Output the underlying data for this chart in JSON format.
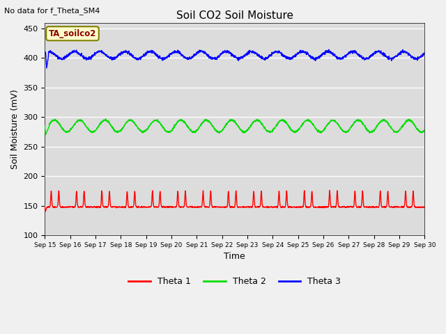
{
  "title": "Soil CO2 Soil Moisture",
  "xlabel": "Time",
  "ylabel": "Soil Moisture (mV)",
  "ylim": [
    100,
    460
  ],
  "yticks": [
    100,
    150,
    200,
    250,
    300,
    350,
    400,
    450
  ],
  "bg_color": "#dcdcdc",
  "fig_color": "#f0f0f0",
  "top_annotation": "No data for f_Theta_SM4",
  "box_annotation": "TA_soilco2",
  "colors": {
    "theta1": "#ff0000",
    "theta2": "#00dd00",
    "theta3": "#0000ff"
  },
  "legend_labels": [
    "Theta 1",
    "Theta 2",
    "Theta 3"
  ],
  "x_tick_labels": [
    "Sep 15",
    "Sep 16",
    "Sep 17",
    "Sep 18",
    "Sep 19",
    "Sep 20",
    "Sep 21",
    "Sep 22",
    "Sep 23",
    "Sep 24",
    "Sep 25",
    "Sep 26",
    "Sep 27",
    "Sep 28",
    "Sep 29",
    "Sep 30"
  ],
  "num_days": 15,
  "theta1_base": 148,
  "theta1_peak": 175,
  "theta2_base": 285,
  "theta2_peak": 305,
  "theta3_base": 405,
  "theta3_amplitude": 6,
  "spike_drop_theta3": 383,
  "spike_drop_theta1": 140,
  "spike_drop_theta2": 270
}
